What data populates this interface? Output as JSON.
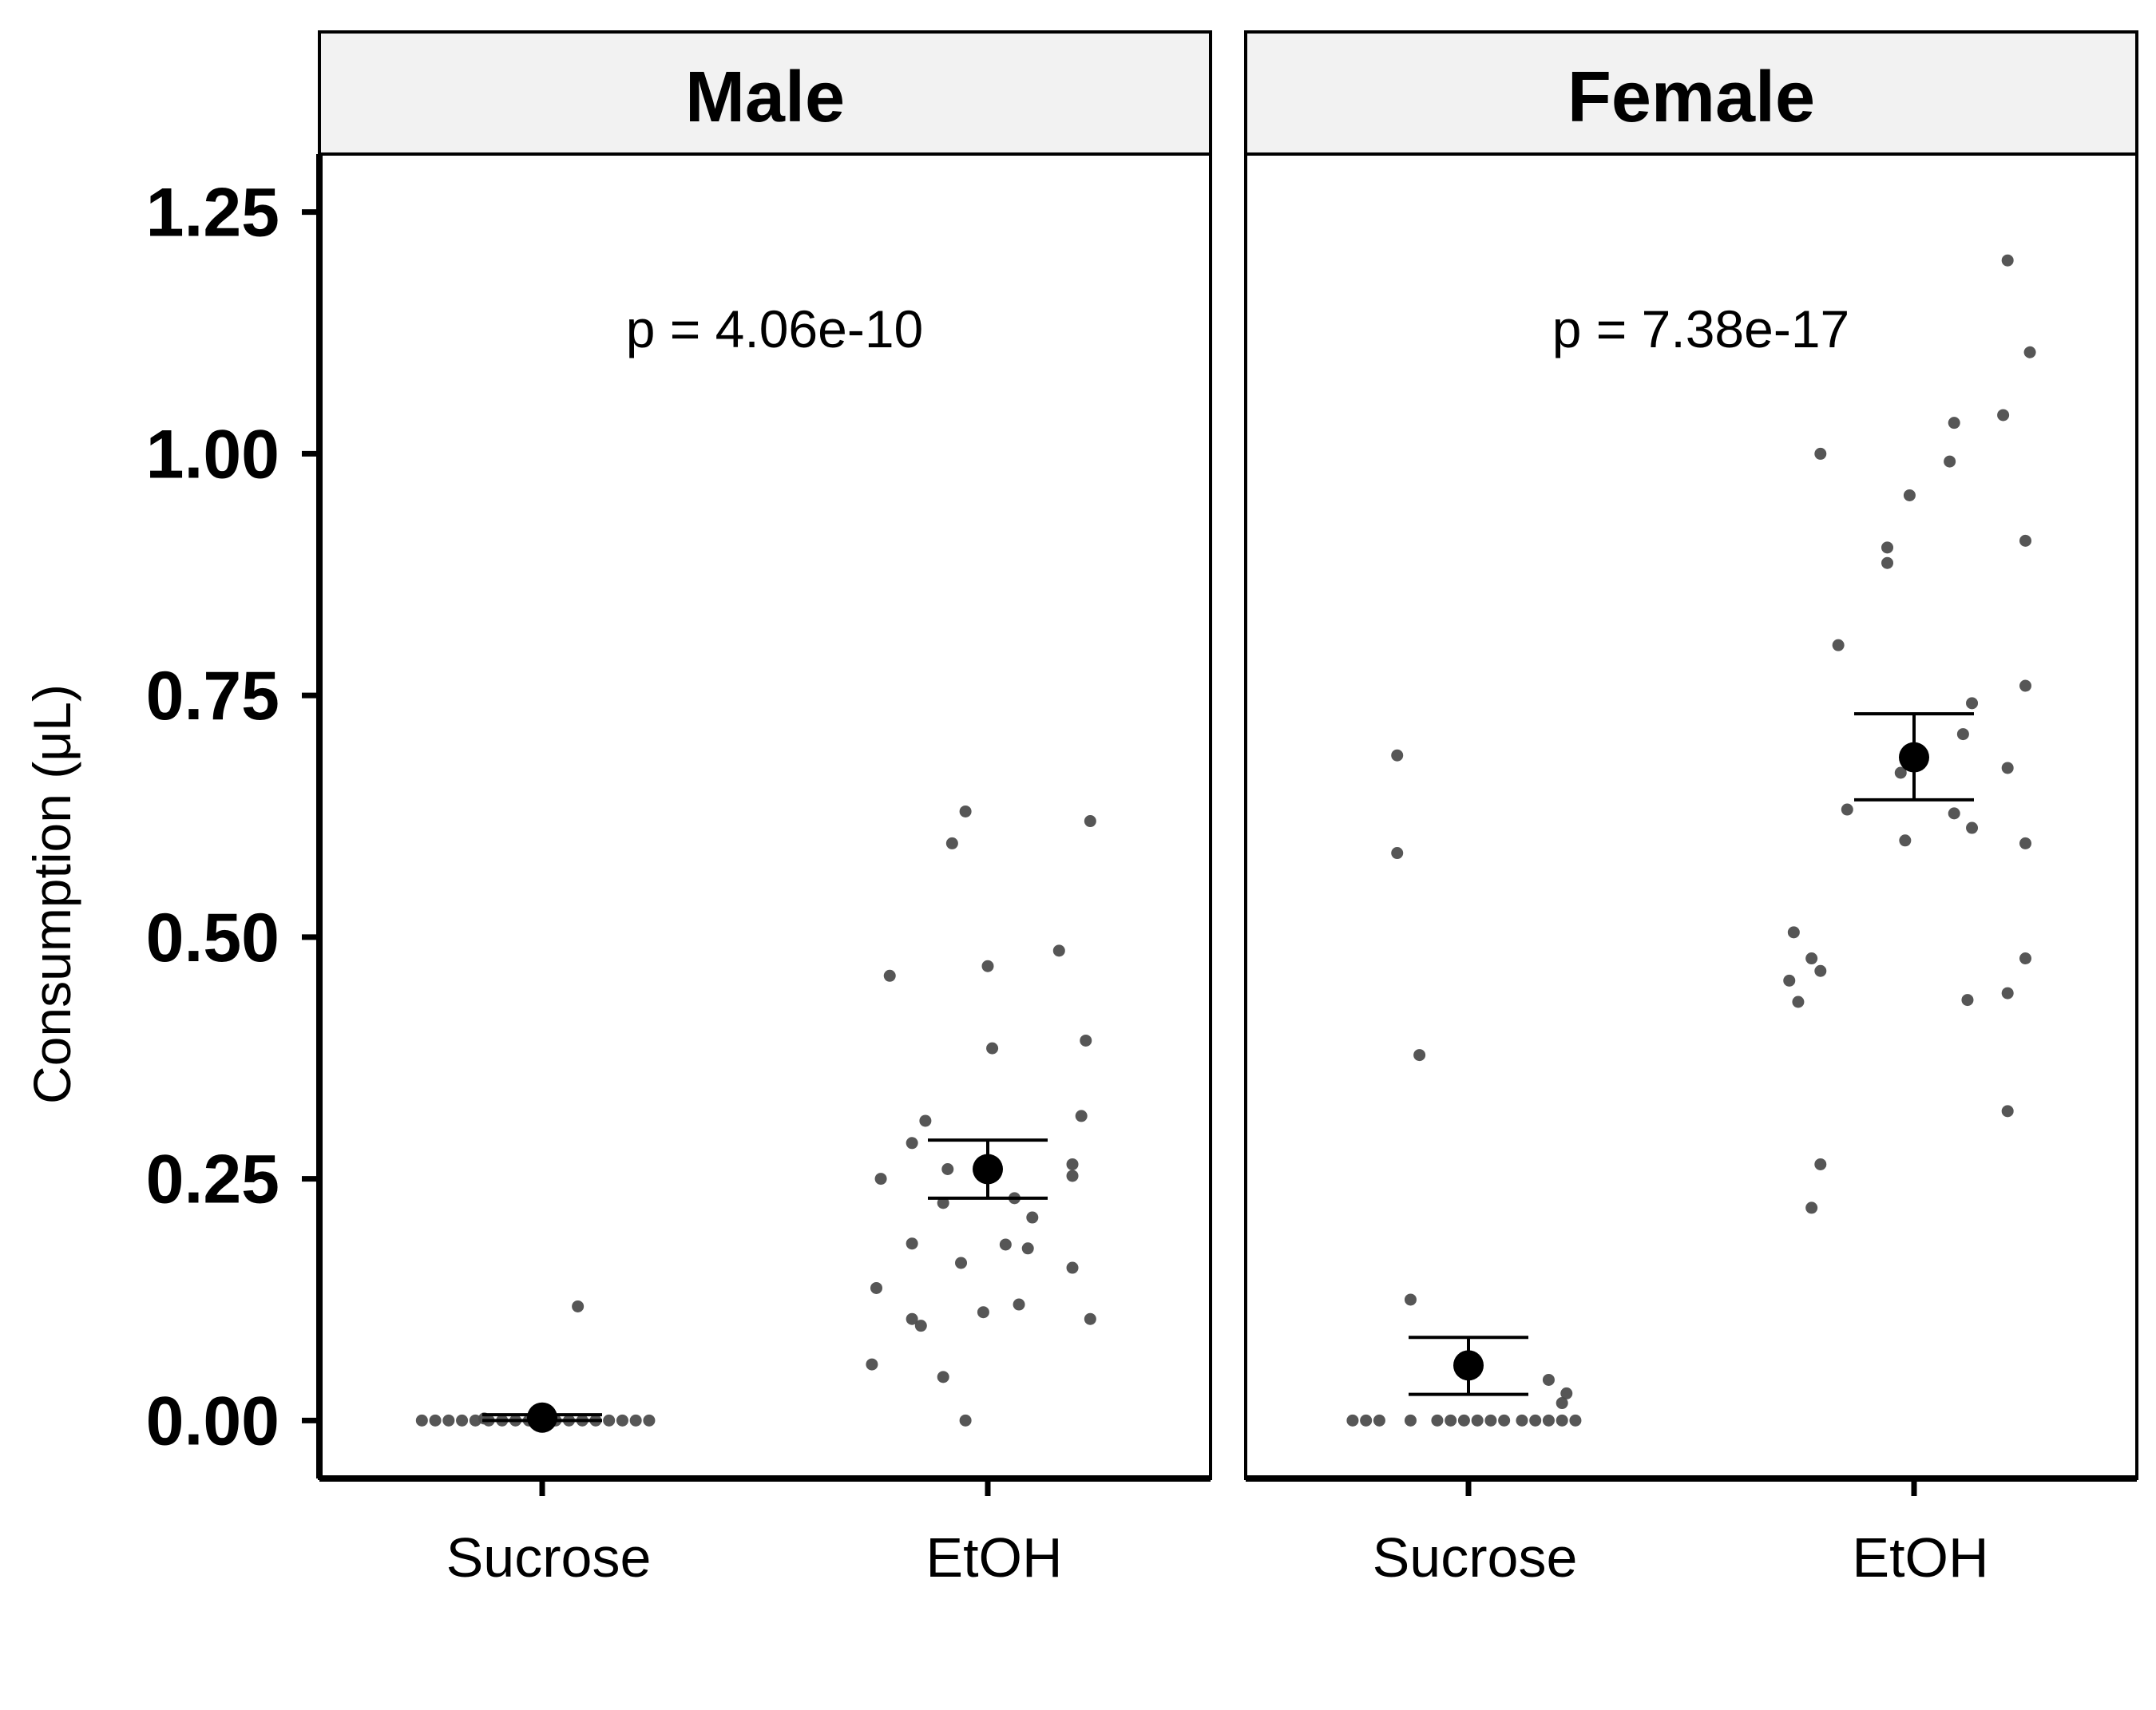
{
  "chart_data": {
    "type": "scatter",
    "ylabel": "Consumption (μL)",
    "xlabel": "",
    "ylim": [
      -0.06,
      1.31
    ],
    "y_ticks": [
      0.0,
      0.25,
      0.5,
      0.75,
      1.0,
      1.25
    ],
    "y_tick_labels": [
      "0.00",
      "0.25",
      "0.50",
      "0.75",
      "1.00",
      "1.25"
    ],
    "categories": [
      "Sucrose",
      "EtOH"
    ],
    "colors": {
      "point": "#4d4d4d",
      "mean": "#000000",
      "strip_bg": "#f2f2f2"
    },
    "panels": [
      {
        "strip": "Male",
        "annotation": "p = 4.06e-10",
        "groups": [
          {
            "category": "Sucrose",
            "mean": 0.003,
            "error": [
              0.0,
              0.006
            ],
            "points": [
              {
                "x": 0.73,
                "y": 0.0
              },
              {
                "x": 0.76,
                "y": 0.0
              },
              {
                "x": 0.79,
                "y": 0.0
              },
              {
                "x": 0.82,
                "y": 0.0
              },
              {
                "x": 0.85,
                "y": 0.0
              },
              {
                "x": 0.88,
                "y": 0.0
              },
              {
                "x": 0.91,
                "y": 0.0
              },
              {
                "x": 0.94,
                "y": 0.0
              },
              {
                "x": 0.97,
                "y": 0.0
              },
              {
                "x": 1.0,
                "y": 0.0
              },
              {
                "x": 1.03,
                "y": 0.0
              },
              {
                "x": 1.06,
                "y": 0.0
              },
              {
                "x": 1.09,
                "y": 0.0
              },
              {
                "x": 1.12,
                "y": 0.0
              },
              {
                "x": 1.15,
                "y": 0.0
              },
              {
                "x": 1.18,
                "y": 0.0
              },
              {
                "x": 1.21,
                "y": 0.0
              },
              {
                "x": 1.24,
                "y": 0.0
              },
              {
                "x": 0.87,
                "y": 0.002
              },
              {
                "x": 0.99,
                "y": 0.003
              },
              {
                "x": 1.08,
                "y": 0.118
              }
            ]
          },
          {
            "category": "EtOH",
            "mean": 0.26,
            "error": [
              0.23,
              0.29
            ],
            "points": [
              {
                "x": 1.95,
                "y": 0.63
              },
              {
                "x": 1.92,
                "y": 0.597
              },
              {
                "x": 2.23,
                "y": 0.62
              },
              {
                "x": 1.78,
                "y": 0.46
              },
              {
                "x": 2.0,
                "y": 0.47
              },
              {
                "x": 2.16,
                "y": 0.486
              },
              {
                "x": 2.01,
                "y": 0.385
              },
              {
                "x": 2.22,
                "y": 0.393
              },
              {
                "x": 1.86,
                "y": 0.31
              },
              {
                "x": 1.83,
                "y": 0.287
              },
              {
                "x": 2.21,
                "y": 0.315
              },
              {
                "x": 1.91,
                "y": 0.26
              },
              {
                "x": 2.19,
                "y": 0.265
              },
              {
                "x": 2.19,
                "y": 0.253
              },
              {
                "x": 1.76,
                "y": 0.25
              },
              {
                "x": 1.9,
                "y": 0.225
              },
              {
                "x": 2.06,
                "y": 0.23
              },
              {
                "x": 2.1,
                "y": 0.21
              },
              {
                "x": 1.83,
                "y": 0.183
              },
              {
                "x": 2.04,
                "y": 0.182
              },
              {
                "x": 2.09,
                "y": 0.178
              },
              {
                "x": 1.94,
                "y": 0.163
              },
              {
                "x": 2.19,
                "y": 0.158
              },
              {
                "x": 1.75,
                "y": 0.137
              },
              {
                "x": 2.07,
                "y": 0.12
              },
              {
                "x": 1.99,
                "y": 0.112
              },
              {
                "x": 1.83,
                "y": 0.105
              },
              {
                "x": 2.23,
                "y": 0.105
              },
              {
                "x": 1.85,
                "y": 0.098
              },
              {
                "x": 1.74,
                "y": 0.058
              },
              {
                "x": 1.9,
                "y": 0.045
              },
              {
                "x": 1.95,
                "y": 0.0
              }
            ]
          }
        ]
      },
      {
        "strip": "Female",
        "annotation": "p = 7.38e-17",
        "groups": [
          {
            "category": "Sucrose",
            "mean": 0.057,
            "error": [
              0.027,
              0.086
            ],
            "points": [
              {
                "x": 0.84,
                "y": 0.688
              },
              {
                "x": 0.84,
                "y": 0.587
              },
              {
                "x": 0.89,
                "y": 0.378
              },
              {
                "x": 0.87,
                "y": 0.125
              },
              {
                "x": 1.18,
                "y": 0.042
              },
              {
                "x": 1.22,
                "y": 0.028
              },
              {
                "x": 1.21,
                "y": 0.018
              },
              {
                "x": 0.74,
                "y": 0.0
              },
              {
                "x": 0.77,
                "y": 0.0
              },
              {
                "x": 0.8,
                "y": 0.0
              },
              {
                "x": 0.87,
                "y": 0.0
              },
              {
                "x": 0.93,
                "y": 0.0
              },
              {
                "x": 0.96,
                "y": 0.0
              },
              {
                "x": 0.99,
                "y": 0.0
              },
              {
                "x": 1.02,
                "y": 0.0
              },
              {
                "x": 1.05,
                "y": 0.0
              },
              {
                "x": 1.08,
                "y": 0.0
              },
              {
                "x": 1.12,
                "y": 0.0
              },
              {
                "x": 1.15,
                "y": 0.0
              },
              {
                "x": 1.18,
                "y": 0.0
              },
              {
                "x": 1.21,
                "y": 0.0
              },
              {
                "x": 1.24,
                "y": 0.0
              }
            ]
          },
          {
            "category": "EtOH",
            "mean": 0.686,
            "error": [
              0.642,
              0.731
            ],
            "points": [
              {
                "x": 2.21,
                "y": 1.2
              },
              {
                "x": 2.26,
                "y": 1.105
              },
              {
                "x": 2.2,
                "y": 1.04
              },
              {
                "x": 2.09,
                "y": 1.032
              },
              {
                "x": 1.79,
                "y": 1.0
              },
              {
                "x": 2.08,
                "y": 0.992
              },
              {
                "x": 1.99,
                "y": 0.957
              },
              {
                "x": 2.25,
                "y": 0.91
              },
              {
                "x": 1.94,
                "y": 0.903
              },
              {
                "x": 1.94,
                "y": 0.887
              },
              {
                "x": 1.83,
                "y": 0.802
              },
              {
                "x": 2.25,
                "y": 0.76
              },
              {
                "x": 2.13,
                "y": 0.742
              },
              {
                "x": 2.11,
                "y": 0.71
              },
              {
                "x": 2.21,
                "y": 0.675
              },
              {
                "x": 1.97,
                "y": 0.67
              },
              {
                "x": 1.85,
                "y": 0.632
              },
              {
                "x": 2.09,
                "y": 0.628
              },
              {
                "x": 2.13,
                "y": 0.613
              },
              {
                "x": 1.98,
                "y": 0.6
              },
              {
                "x": 2.25,
                "y": 0.597
              },
              {
                "x": 1.73,
                "y": 0.505
              },
              {
                "x": 1.77,
                "y": 0.478
              },
              {
                "x": 2.25,
                "y": 0.478
              },
              {
                "x": 1.79,
                "y": 0.465
              },
              {
                "x": 1.72,
                "y": 0.455
              },
              {
                "x": 2.12,
                "y": 0.435
              },
              {
                "x": 1.74,
                "y": 0.433
              },
              {
                "x": 2.21,
                "y": 0.442
              },
              {
                "x": 2.21,
                "y": 0.32
              },
              {
                "x": 1.79,
                "y": 0.265
              },
              {
                "x": 1.77,
                "y": 0.22
              }
            ]
          }
        ]
      }
    ]
  }
}
